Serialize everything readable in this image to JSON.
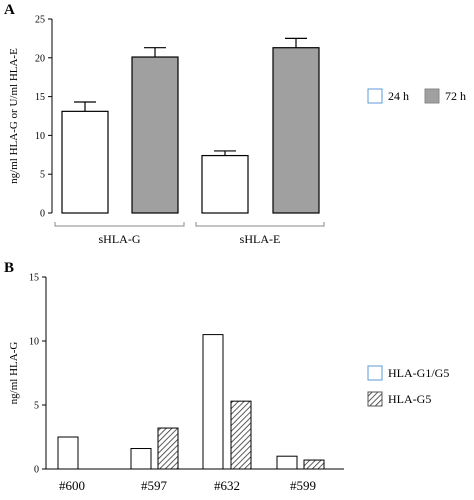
{
  "chart_data": [
    {
      "panel": "A",
      "type": "bar",
      "ylabel": "ng/ml HLA-G or U/ml HLA-E",
      "ylim": [
        0,
        25
      ],
      "yticks": [
        0,
        5,
        10,
        15,
        20,
        25
      ],
      "categories": [
        "sHLA-G",
        "sHLA-E"
      ],
      "series": [
        {
          "name": "24 h",
          "values": [
            13.1,
            7.4
          ],
          "errors": [
            1.2,
            0.6
          ],
          "fill": "#ffffff"
        },
        {
          "name": "72 h",
          "values": [
            20.1,
            21.3
          ],
          "errors": [
            1.2,
            1.2
          ],
          "fill": "#a0a0a0"
        }
      ],
      "legend_position": "right"
    },
    {
      "panel": "B",
      "type": "bar",
      "ylabel": "ng/ml HLA-G",
      "ylim": [
        0,
        15
      ],
      "yticks": [
        0,
        5,
        10,
        15
      ],
      "categories": [
        "#600",
        "#597",
        "#632",
        "#599"
      ],
      "series": [
        {
          "name": "HLA-G1/G5",
          "values": [
            2.5,
            1.6,
            10.5,
            1.0
          ],
          "fill": "#ffffff"
        },
        {
          "name": "HLA-G5",
          "values": [
            0,
            3.2,
            5.3,
            0.7
          ],
          "fill": "hatched"
        }
      ],
      "legend_position": "right"
    }
  ]
}
